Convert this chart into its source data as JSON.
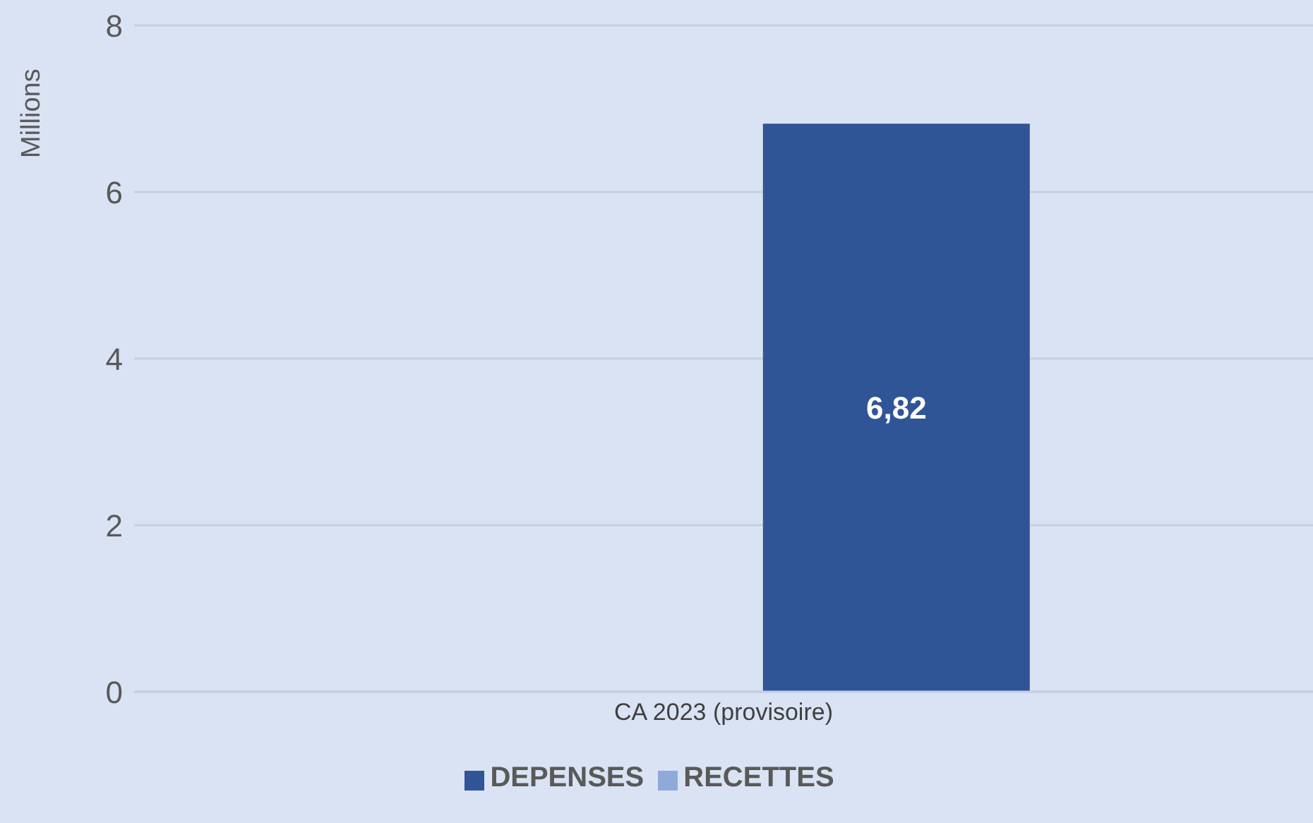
{
  "chart_data": {
    "type": "bar",
    "ylabel": "Millions",
    "categories": [
      "CA 2023 (provisoire)"
    ],
    "series": [
      {
        "name": "RECETTES",
        "color": "#8eaadb",
        "values": [
          null
        ]
      },
      {
        "name": "DEPENSES",
        "color": "#2f5597",
        "values": [
          6.82
        ],
        "value_labels": [
          "6,82"
        ]
      }
    ],
    "ylim": [
      0,
      8
    ],
    "yticks": [
      0,
      2,
      4,
      6,
      8
    ],
    "grid": "y",
    "legend": "bottom"
  }
}
